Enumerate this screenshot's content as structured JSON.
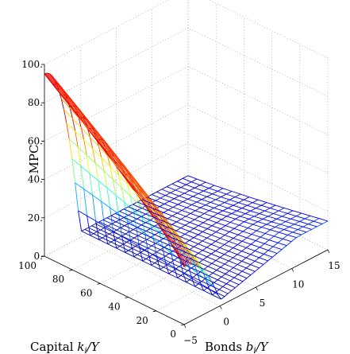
{
  "chart_data": {
    "type": "surface-mesh",
    "zlabel": "MPC",
    "xlabel": {
      "text": "Bonds",
      "var": "b",
      "sub": "i",
      "tail": "/Y"
    },
    "ylabel": {
      "text": "Capital",
      "var": "k",
      "sub": "i",
      "tail": "/Y"
    },
    "x_ticks": [
      "−5",
      "0",
      "5",
      "10",
      "15"
    ],
    "y_ticks": [
      "0",
      "20",
      "40",
      "60",
      "80",
      "100"
    ],
    "z_ticks": [
      "0.",
      "20.",
      "40.",
      "60.",
      "80.",
      "100."
    ],
    "xlim": [
      -5,
      15
    ],
    "ylim": [
      0,
      100
    ],
    "zlim": [
      0,
      100
    ],
    "grid": true,
    "box": true,
    "colormap": "jet",
    "surface_features": {
      "peak_mpc_at_borrowing_limit_high_capital": 95,
      "mpc_at_borrowing_limit_low_capital": 30,
      "mpc_at_high_bonds": 15,
      "mpc_trough_near_zero_bonds": 3
    }
  }
}
